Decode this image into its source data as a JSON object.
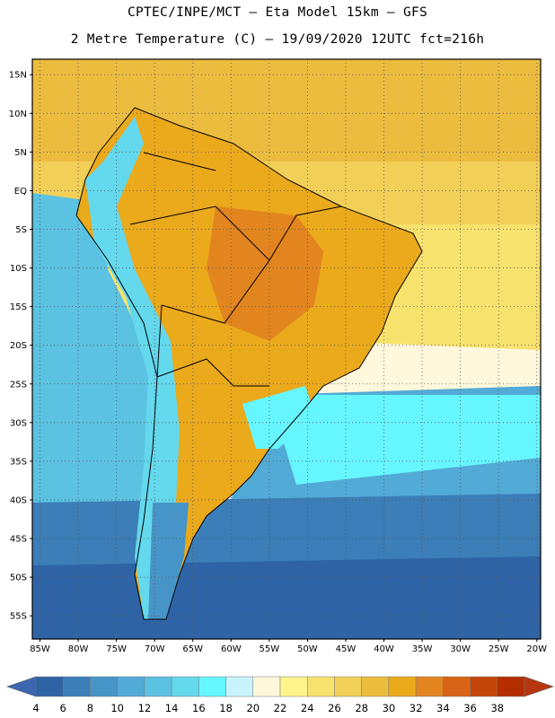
{
  "header": {
    "title_line1": "CPTEC/INPE/MCT –  Eta Model 15km – GFS",
    "title_line2": "2 Metre Temperature (C) – 19/09/2020 12UTC fct=216h"
  },
  "map": {
    "lat_labels": [
      "15N",
      "10N",
      "5N",
      "EQ",
      "5S",
      "10S",
      "15S",
      "20S",
      "25S",
      "30S",
      "35S",
      "40S",
      "45S",
      "50S",
      "55S"
    ],
    "lon_labels": [
      "85W",
      "80W",
      "75W",
      "70W",
      "65W",
      "60W",
      "55W",
      "50W",
      "45W",
      "40W",
      "35W",
      "30W",
      "25W",
      "20W"
    ],
    "lat_range": [
      17,
      -58
    ],
    "lon_range": [
      -86,
      -19.5
    ],
    "gridlines": "dotted"
  },
  "colorbar": {
    "labels": [
      "4",
      "6",
      "8",
      "10",
      "12",
      "14",
      "16",
      "18",
      "20",
      "22",
      "24",
      "26",
      "28",
      "30",
      "32",
      "34",
      "36",
      "38"
    ],
    "colors": [
      "#2e64a6",
      "#3b7eb8",
      "#4795c8",
      "#52aad6",
      "#5cc2e2",
      "#64d8ec",
      "#66f6ff",
      "#c8f4ff",
      "#fff8dc",
      "#fff48c",
      "#f7e26d",
      "#f2cf57",
      "#ecbc3f",
      "#eba91c",
      "#e2851f",
      "#d86417",
      "#c44508",
      "#b52e02"
    ],
    "below_color": "#3c67b0",
    "above_color": "#b8360e"
  }
}
